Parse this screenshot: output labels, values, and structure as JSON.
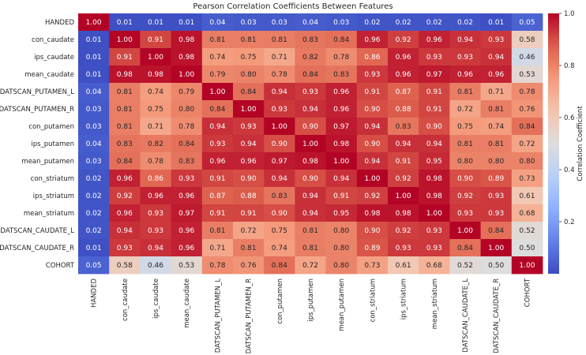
{
  "chart_data": {
    "type": "heatmap",
    "title": "Pearson Correlation Coefficients Between Features",
    "colorbar_label": "Correlation Coefficient",
    "colorbar_range": [
      0.0,
      1.0
    ],
    "colorbar_ticks": [
      "0.2",
      "0.4",
      "0.6",
      "0.8",
      "1.0"
    ],
    "colormap": "coolwarm",
    "labels": [
      "HANDED",
      "con_caudate",
      "ips_caudate",
      "mean_caudate",
      "DATSCAN_PUTAMEN_L",
      "DATSCAN_PUTAMEN_R",
      "con_putamen",
      "ips_putamen",
      "mean_putamen",
      "con_striatum",
      "ips_striatum",
      "mean_striatum",
      "DATSCAN_CAUDATE_L",
      "DATSCAN_CAUDATE_R",
      "COHORT"
    ],
    "values": [
      [
        1.0,
        0.01,
        0.01,
        0.01,
        0.04,
        0.03,
        0.03,
        0.04,
        0.03,
        0.02,
        0.02,
        0.02,
        0.02,
        0.01,
        0.05
      ],
      [
        0.01,
        1.0,
        0.91,
        0.98,
        0.81,
        0.81,
        0.81,
        0.83,
        0.84,
        0.96,
        0.92,
        0.96,
        0.94,
        0.93,
        0.58
      ],
      [
        0.01,
        0.91,
        1.0,
        0.98,
        0.74,
        0.75,
        0.71,
        0.82,
        0.78,
        0.86,
        0.96,
        0.93,
        0.93,
        0.94,
        0.46
      ],
      [
        0.01,
        0.98,
        0.98,
        1.0,
        0.79,
        0.8,
        0.78,
        0.84,
        0.83,
        0.93,
        0.96,
        0.97,
        0.96,
        0.96,
        0.53
      ],
      [
        0.04,
        0.81,
        0.74,
        0.79,
        1.0,
        0.84,
        0.94,
        0.93,
        0.96,
        0.91,
        0.87,
        0.91,
        0.81,
        0.71,
        0.78
      ],
      [
        0.03,
        0.81,
        0.75,
        0.8,
        0.84,
        1.0,
        0.93,
        0.94,
        0.96,
        0.9,
        0.88,
        0.91,
        0.72,
        0.81,
        0.76
      ],
      [
        0.03,
        0.81,
        0.71,
        0.78,
        0.94,
        0.93,
        1.0,
        0.9,
        0.97,
        0.94,
        0.83,
        0.9,
        0.75,
        0.74,
        0.84
      ],
      [
        0.04,
        0.83,
        0.82,
        0.84,
        0.93,
        0.94,
        0.9,
        1.0,
        0.98,
        0.9,
        0.94,
        0.94,
        0.81,
        0.81,
        0.72
      ],
      [
        0.03,
        0.84,
        0.78,
        0.83,
        0.96,
        0.96,
        0.97,
        0.98,
        1.0,
        0.94,
        0.91,
        0.95,
        0.8,
        0.8,
        0.8
      ],
      [
        0.02,
        0.96,
        0.86,
        0.93,
        0.91,
        0.9,
        0.94,
        0.9,
        0.94,
        1.0,
        0.92,
        0.98,
        0.9,
        0.89,
        0.73
      ],
      [
        0.02,
        0.92,
        0.96,
        0.96,
        0.87,
        0.88,
        0.83,
        0.94,
        0.91,
        0.92,
        1.0,
        0.98,
        0.92,
        0.93,
        0.61
      ],
      [
        0.02,
        0.96,
        0.93,
        0.97,
        0.91,
        0.91,
        0.9,
        0.94,
        0.95,
        0.98,
        0.98,
        1.0,
        0.93,
        0.93,
        0.68
      ],
      [
        0.02,
        0.94,
        0.93,
        0.96,
        0.81,
        0.72,
        0.75,
        0.81,
        0.8,
        0.9,
        0.92,
        0.93,
        1.0,
        0.84,
        0.52
      ],
      [
        0.01,
        0.93,
        0.94,
        0.96,
        0.71,
        0.81,
        0.74,
        0.81,
        0.8,
        0.89,
        0.93,
        0.93,
        0.84,
        1.0,
        0.5
      ],
      [
        0.05,
        0.58,
        0.46,
        0.53,
        0.78,
        0.76,
        0.84,
        0.72,
        0.8,
        0.73,
        0.61,
        0.68,
        0.52,
        0.5,
        1.0
      ]
    ]
  }
}
